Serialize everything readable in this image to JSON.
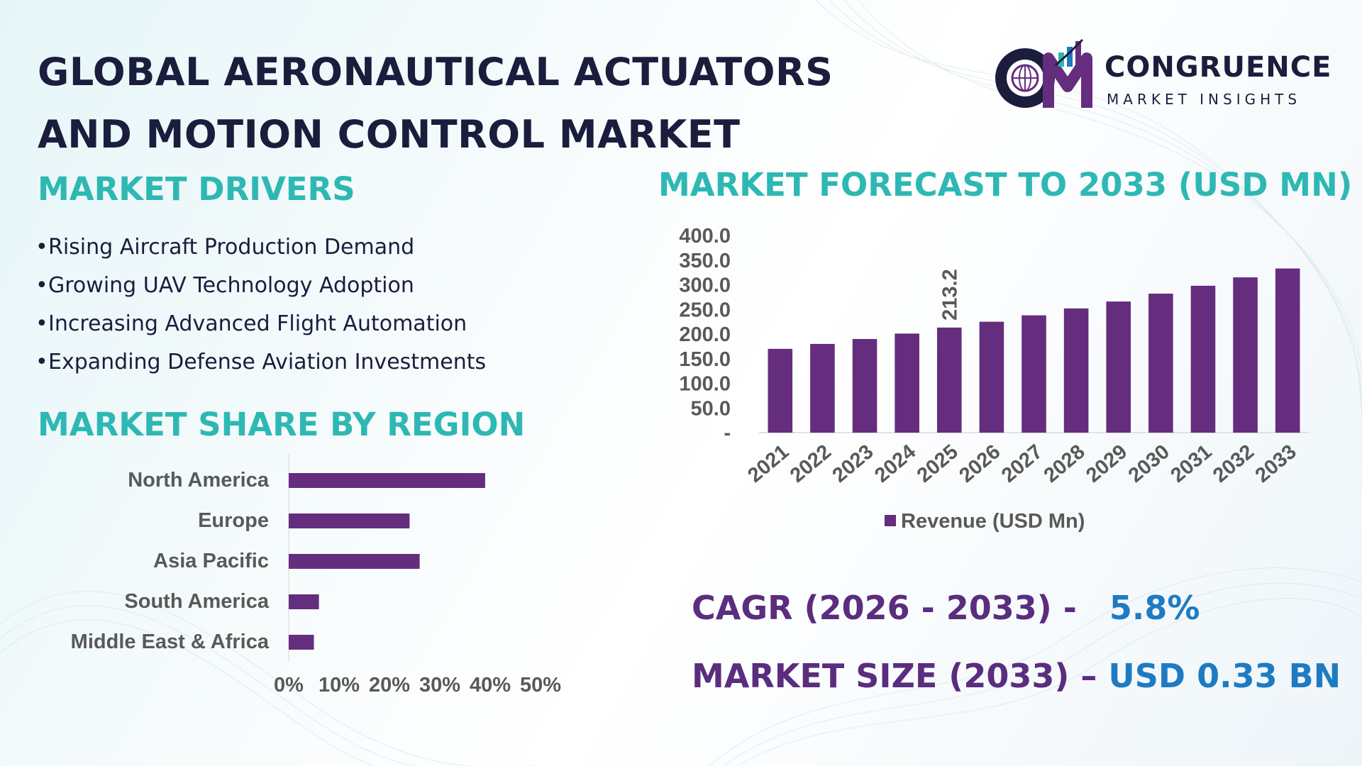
{
  "header": {
    "title_line1": "GLOBAL AERONAUTICAL ACTUATORS",
    "title_line2": "AND MOTION CONTROL MARKET"
  },
  "logo": {
    "name": "CONGRUENCE",
    "tagline": "MARKET INSIGHTS"
  },
  "drivers": {
    "heading": "MARKET DRIVERS",
    "items": [
      "Rising Aircraft Production Demand",
      "Growing UAV Technology Adoption",
      "Increasing Advanced Flight Automation",
      "Expanding Defense Aviation Investments"
    ]
  },
  "region": {
    "heading": "MARKET SHARE BY REGION"
  },
  "forecast": {
    "heading": "MARKET FORECAST TO 2033 (USD MN)"
  },
  "stats": {
    "cagr_label": "CAGR (2026 - 2033) -",
    "cagr_value": "5.8%",
    "size_label": "MARKET SIZE (2033) –",
    "size_value": "USD 0.33 BN"
  },
  "colors": {
    "bar": "#652d7e",
    "heading": "#2eb8b3",
    "title": "#1b1d3d",
    "stat_label": "#5a2d7e",
    "stat_value": "#1e7bc1"
  },
  "chart_data": [
    {
      "type": "bar",
      "orientation": "horizontal",
      "categories": [
        "North America",
        "Europe",
        "Asia Pacific",
        "South America",
        "Middle East & Africa"
      ],
      "values": [
        39,
        24,
        26,
        6,
        5
      ],
      "unit": "%",
      "xlim": [
        0,
        50
      ],
      "xticks": [
        "0%",
        "10%",
        "20%",
        "30%",
        "40%",
        "50%"
      ]
    },
    {
      "type": "bar",
      "categories": [
        "2021",
        "2022",
        "2023",
        "2024",
        "2025",
        "2026",
        "2027",
        "2028",
        "2029",
        "2030",
        "2031",
        "2032",
        "2033"
      ],
      "series": [
        {
          "name": "Revenue (USD Mn)",
          "values": [
            170,
            180,
            190,
            201,
            213.2,
            225,
            238,
            252,
            266,
            282,
            298,
            315,
            333
          ]
        }
      ],
      "data_labels": [
        {
          "category": "2025",
          "text": "213.2"
        }
      ],
      "ylim": [
        0,
        400
      ],
      "yticks": [
        "-",
        "50.0",
        "100.0",
        "150.0",
        "200.0",
        "250.0",
        "300.0",
        "350.0",
        "400.0"
      ],
      "legend": "bottom",
      "grid": false
    }
  ]
}
